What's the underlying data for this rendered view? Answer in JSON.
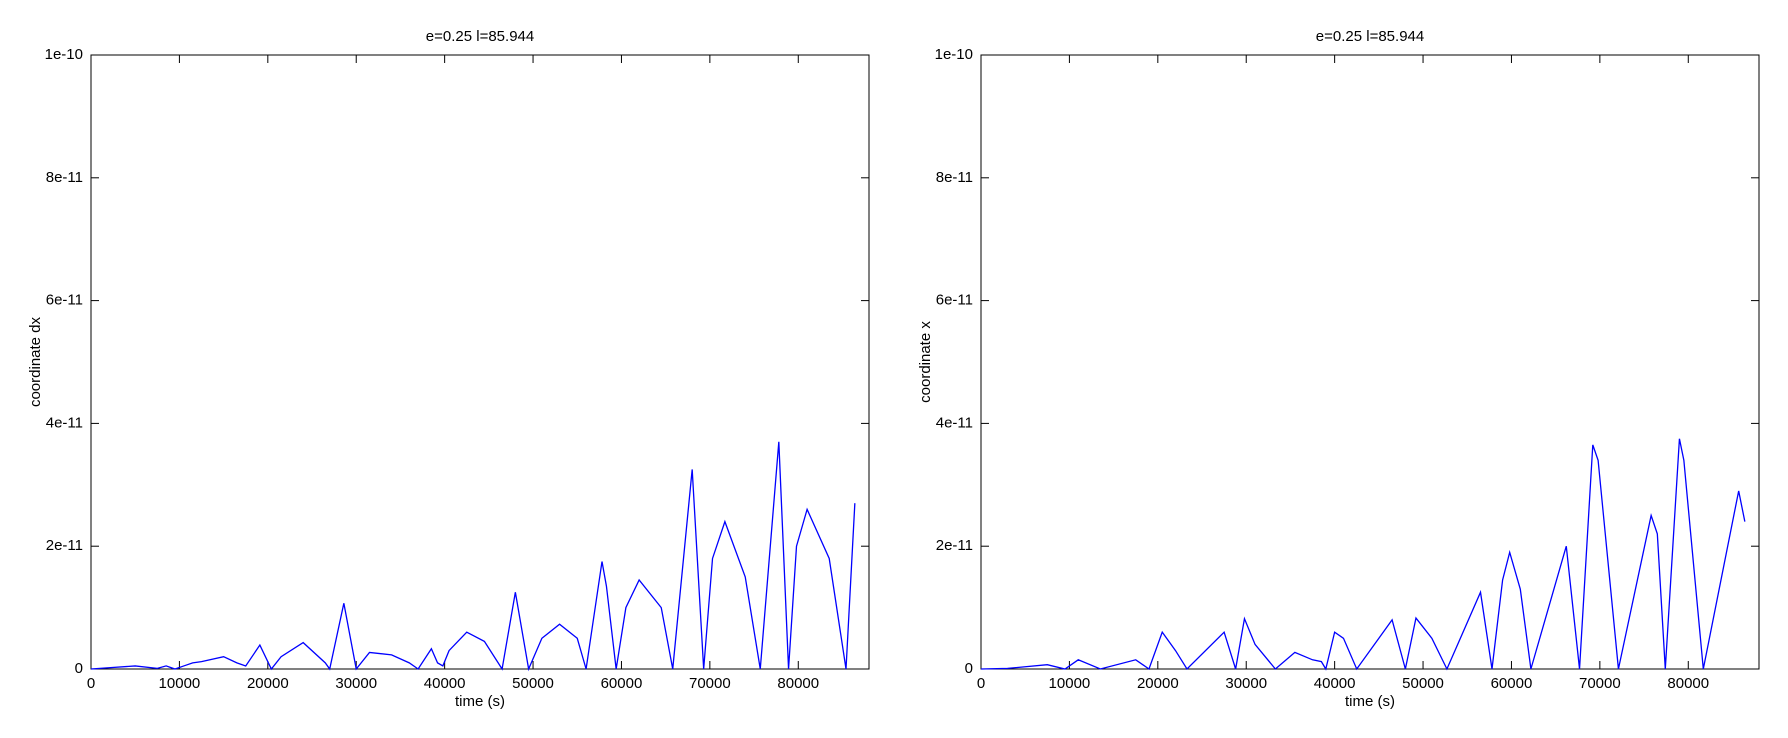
{
  "chart_data": [
    {
      "type": "line",
      "title": "e=0.25 l=85.944",
      "xlabel": "time (s)",
      "ylabel": "coordinate dx",
      "xlim": [
        0,
        88000
      ],
      "xticks": [
        0,
        10000,
        20000,
        30000,
        40000,
        50000,
        60000,
        70000,
        80000
      ],
      "ylim": [
        0,
        1e-10
      ],
      "yticks": [
        0,
        {
          "value": 2e-11,
          "label": "2e-11"
        },
        {
          "value": 4e-11,
          "label": "4e-11"
        },
        {
          "value": 6e-11,
          "label": "6e-11"
        },
        {
          "value": 8e-11,
          "label": "8e-11"
        },
        {
          "value": 1e-10,
          "label": "1e-10"
        }
      ],
      "color": "#0000ff",
      "x": [
        0,
        2000,
        5000,
        7500,
        8500,
        9500,
        10500,
        11500,
        12500,
        15000,
        16500,
        17500,
        19100,
        20400,
        21500,
        24000,
        26500,
        27000,
        28600,
        30000,
        31500,
        34000,
        36000,
        37000,
        38500,
        39200,
        39800,
        40500,
        42500,
        44500,
        46500,
        48000,
        49500,
        51000,
        53000,
        55000,
        56000,
        57800,
        58300,
        59400,
        60500,
        62000,
        64500,
        65800,
        68000,
        69300,
        70300,
        71700,
        74000,
        75700,
        77800,
        78900,
        79800,
        81000,
        83500,
        85400,
        86400
      ],
      "values": [
        0,
        2e-13,
        5e-13,
        1e-13,
        5e-13,
        0,
        5e-13,
        1e-12,
        1.2e-12,
        2e-12,
        1e-12,
        5e-13,
        3.9e-12,
        0,
        2e-12,
        4.3e-12,
        1e-12,
        0,
        1.07e-11,
        0,
        2.7e-12,
        2.3e-12,
        1e-12,
        0,
        3.3e-12,
        1e-12,
        5e-13,
        3e-12,
        6e-12,
        4.5e-12,
        0,
        1.25e-11,
        0,
        5e-12,
        7.3e-12,
        5e-12,
        0,
        1.75e-11,
        1.35e-11,
        0,
        1e-11,
        1.45e-11,
        1e-11,
        0,
        3.25e-11,
        0,
        1.8e-11,
        2.4e-11,
        1.5e-11,
        0,
        3.7e-11,
        0,
        2e-11,
        2.6e-11,
        1.8e-11,
        0,
        2.7e-11
      ]
    },
    {
      "type": "line",
      "title": "e=0.25 l=85.944",
      "xlabel": "time (s)",
      "ylabel": "coordinate x",
      "xlim": [
        0,
        88000
      ],
      "xticks": [
        0,
        10000,
        20000,
        30000,
        40000,
        50000,
        60000,
        70000,
        80000
      ],
      "ylim": [
        0,
        1e-10
      ],
      "yticks": [
        0,
        {
          "value": 2e-11,
          "label": "2e-11"
        },
        {
          "value": 4e-11,
          "label": "4e-11"
        },
        {
          "value": 6e-11,
          "label": "6e-11"
        },
        {
          "value": 8e-11,
          "label": "8e-11"
        },
        {
          "value": 1e-10,
          "label": "1e-10"
        }
      ],
      "color": "#0000ff",
      "x": [
        0,
        3000,
        7500,
        9500,
        11000,
        13500,
        17500,
        19000,
        20500,
        22000,
        23300,
        27500,
        28800,
        29800,
        31000,
        33300,
        35500,
        37500,
        38500,
        39000,
        40000,
        41000,
        42500,
        46500,
        48000,
        49200,
        51000,
        52700,
        56500,
        57800,
        59000,
        59800,
        61000,
        62200,
        66200,
        67700,
        69200,
        69800,
        72100,
        75800,
        76500,
        77400,
        79000,
        79500,
        81700,
        85700,
        86400
      ],
      "values": [
        0,
        1e-13,
        7e-13,
        0,
        1.5e-12,
        0,
        1.5e-12,
        0,
        6e-12,
        3e-12,
        0,
        6e-12,
        0,
        8.2e-12,
        4e-12,
        0,
        2.7e-12,
        1.5e-12,
        1.2e-12,
        0,
        6e-12,
        5e-12,
        0,
        8e-12,
        0,
        8.3e-12,
        5e-12,
        0,
        1.25e-11,
        0,
        1.45e-11,
        1.9e-11,
        1.3e-11,
        0,
        2e-11,
        0,
        3.65e-11,
        3.4e-11,
        0,
        2.5e-11,
        2.2e-11,
        0,
        3.75e-11,
        3.4e-11,
        0,
        2.9e-11,
        2.4e-11
      ]
    }
  ]
}
